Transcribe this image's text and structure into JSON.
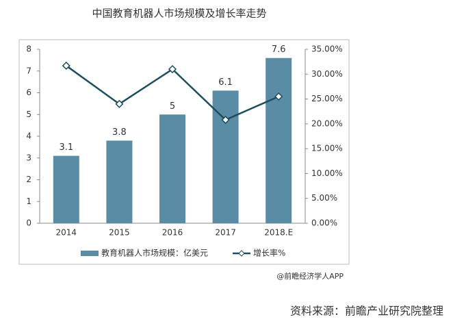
{
  "chart_data": {
    "type": "bar-line",
    "title": "中国教育机器人市场规模及增长率走势",
    "categories": [
      "2014",
      "2015",
      "2016",
      "2017",
      "2018.E"
    ],
    "series": [
      {
        "name": "教育机器人市场规模：亿美元",
        "type": "bar",
        "color": "#5a8ca6",
        "values": [
          3.1,
          3.8,
          5,
          6.1,
          7.6
        ]
      },
      {
        "name": "增长率%",
        "type": "line",
        "axis": "y2",
        "color": "#1e4d5c",
        "values": [
          31.7,
          24.0,
          31.0,
          20.8,
          25.5
        ]
      }
    ],
    "ylim": [
      0,
      8
    ],
    "yticks": [
      0,
      1,
      2,
      3,
      4,
      5,
      6,
      7,
      8
    ],
    "y2lim": [
      0,
      35
    ],
    "y2ticks": [
      {
        "value": 0,
        "label": "0.00%"
      },
      {
        "value": 5,
        "label": "5.00%"
      },
      {
        "value": 10,
        "label": "10.00%"
      },
      {
        "value": 15,
        "label": "15.00%"
      },
      {
        "value": 20,
        "label": "20.00%"
      },
      {
        "value": 25,
        "label": "25.00%"
      },
      {
        "value": 30,
        "label": "30.00%"
      },
      {
        "value": 35,
        "label": "35.00%"
      }
    ],
    "grid": false,
    "legend": "bottom",
    "watermark": "@前瞻经济学人APP",
    "source": "资料来源：前瞻产业研究院整理"
  }
}
